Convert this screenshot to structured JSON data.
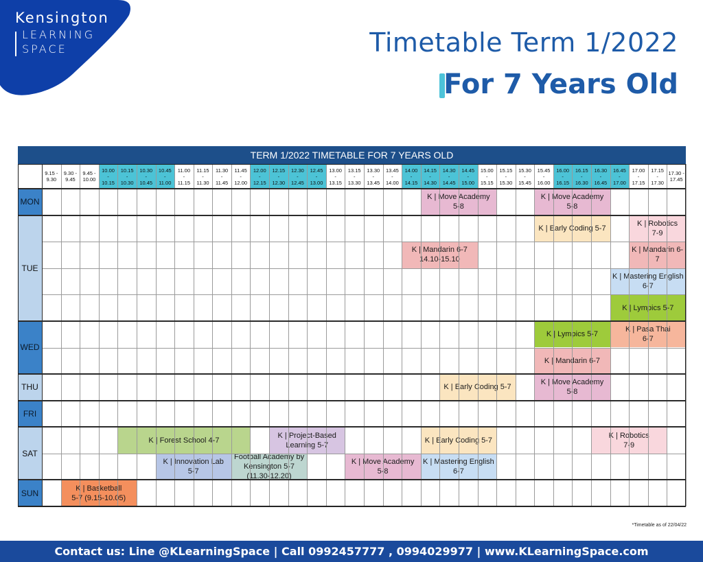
{
  "logo": {
    "line1": "Kensington",
    "line2": "LEARNING",
    "line3": "SPACE"
  },
  "title": {
    "line1": "Timetable Term 1/2022",
    "line2": "For 7 Years Old"
  },
  "table": {
    "header": "TERM 1/2022 TIMETABLE FOR 7 YEARS OLD",
    "times": [
      {
        "a": "9.15 -",
        "b": "9.30",
        "c": "",
        "teal": false
      },
      {
        "a": "9.30 -",
        "b": "9.45",
        "c": "",
        "teal": false
      },
      {
        "a": "9.45 -",
        "b": "10.00",
        "c": "",
        "teal": false
      },
      {
        "a": "10.00",
        "b": "-",
        "c": "10.15",
        "teal": true
      },
      {
        "a": "10.15",
        "b": "-",
        "c": "10.30",
        "teal": true
      },
      {
        "a": "10.30",
        "b": "-",
        "c": "10.45",
        "teal": true
      },
      {
        "a": "10.45",
        "b": "-",
        "c": "11.00",
        "teal": true
      },
      {
        "a": "11.00",
        "b": "-",
        "c": "11.15",
        "teal": false
      },
      {
        "a": "11.15",
        "b": "-",
        "c": "11.30",
        "teal": false
      },
      {
        "a": "11.30",
        "b": "-",
        "c": "11.45",
        "teal": false
      },
      {
        "a": "11.45",
        "b": "-",
        "c": "12.00",
        "teal": false
      },
      {
        "a": "12.00",
        "b": "-",
        "c": "12.15",
        "teal": true
      },
      {
        "a": "12.15",
        "b": "-",
        "c": "12.30",
        "teal": true
      },
      {
        "a": "12.30",
        "b": "-",
        "c": "12.45",
        "teal": true
      },
      {
        "a": "12.45",
        "b": "-",
        "c": "13.00",
        "teal": true
      },
      {
        "a": "13.00",
        "b": "-",
        "c": "13.15",
        "teal": false
      },
      {
        "a": "13.15",
        "b": "-",
        "c": "13.30",
        "teal": false
      },
      {
        "a": "13.30",
        "b": "-",
        "c": "13.45",
        "teal": false
      },
      {
        "a": "13.45",
        "b": "-",
        "c": "14.00",
        "teal": false
      },
      {
        "a": "14.00",
        "b": "-",
        "c": "14.15",
        "teal": true
      },
      {
        "a": "14.15",
        "b": "-",
        "c": "14.30",
        "teal": true
      },
      {
        "a": "14.30",
        "b": "-",
        "c": "14.45",
        "teal": true
      },
      {
        "a": "14.45",
        "b": "-",
        "c": "15.00",
        "teal": true
      },
      {
        "a": "15.00",
        "b": "-",
        "c": "15.15",
        "teal": false
      },
      {
        "a": "15.15",
        "b": "-",
        "c": "15.30",
        "teal": false
      },
      {
        "a": "15.30",
        "b": "-",
        "c": "15.45",
        "teal": false
      },
      {
        "a": "15.45",
        "b": "-",
        "c": "16.00",
        "teal": false
      },
      {
        "a": "16.00",
        "b": "-",
        "c": "16.15",
        "teal": true
      },
      {
        "a": "16.15",
        "b": "-",
        "c": "16.30",
        "teal": true
      },
      {
        "a": "16.30",
        "b": "-",
        "c": "16.45",
        "teal": true
      },
      {
        "a": "16.45",
        "b": "-",
        "c": "17.00",
        "teal": true
      },
      {
        "a": "17.00",
        "b": "-",
        "c": "17.15",
        "teal": false
      },
      {
        "a": "17.15",
        "b": "-",
        "c": "17.30",
        "teal": false
      },
      {
        "a": "17.30 -",
        "b": "17.45",
        "c": "",
        "teal": false
      }
    ],
    "days": [
      {
        "label": "MON",
        "rows": 1,
        "blue": true
      },
      {
        "label": "TUE",
        "rows": 4,
        "blue": false
      },
      {
        "label": "WED",
        "rows": 2,
        "blue": true
      },
      {
        "label": "THU",
        "rows": 1,
        "blue": false
      },
      {
        "label": "FRI",
        "rows": 1,
        "blue": true
      },
      {
        "label": "SAT",
        "rows": 2,
        "blue": false
      },
      {
        "label": "SUN",
        "rows": 1,
        "blue": true
      }
    ],
    "events": [
      {
        "text": "K | Move Academy\n5-8",
        "day": "MON",
        "row": 0,
        "start": 20,
        "span": 4,
        "color": "#e7b9d2"
      },
      {
        "text": "K | Move Academy\n5-8",
        "day": "MON",
        "row": 0,
        "start": 26,
        "span": 4,
        "color": "#e7b9d2"
      },
      {
        "text": "K | Early Coding 5-7",
        "day": "TUE",
        "row": 0,
        "start": 26,
        "span": 4,
        "color": "#fbe5c0"
      },
      {
        "text": "K | Robotics\n7-9",
        "day": "TUE",
        "row": 0,
        "start": 31,
        "span": 3,
        "color": "#f9d7dd"
      },
      {
        "text": "K | Mandarin 6-7\n14.10-15.10",
        "day": "TUE",
        "row": 1,
        "start": 19,
        "span": 4,
        "color": "#f1b8b8"
      },
      {
        "text": "K | Mandarin 6-7",
        "day": "TUE",
        "row": 1,
        "start": 31,
        "span": 3,
        "color": "#f1b8b8"
      },
      {
        "text": "K | Mastering English\n6-7",
        "day": "TUE",
        "row": 2,
        "start": 30,
        "span": 4,
        "color": "#c7ddf3"
      },
      {
        "text": "K | Lympics 5-7",
        "day": "TUE",
        "row": 3,
        "start": 30,
        "span": 4,
        "color": "#9ecb3b"
      },
      {
        "text": "K | Lympics 5-7",
        "day": "WED",
        "row": 0,
        "start": 26,
        "span": 4,
        "color": "#9ecb3b"
      },
      {
        "text": "K | Pasa Thai\n6-7",
        "day": "WED",
        "row": 0,
        "start": 30,
        "span": 4,
        "color": "#f6b69c"
      },
      {
        "text": "K | Mandarin 6-7",
        "day": "WED",
        "row": 1,
        "start": 26,
        "span": 4,
        "color": "#f1b8b8"
      },
      {
        "text": "K | Early Coding 5-7",
        "day": "THU",
        "row": 0,
        "start": 21,
        "span": 4,
        "color": "#fbe5c0"
      },
      {
        "text": "K | Move Academy\n5-8",
        "day": "THU",
        "row": 0,
        "start": 26,
        "span": 4,
        "color": "#e7b9d2"
      },
      {
        "text": "K | Forest School 4-7",
        "day": "SAT",
        "row": 0,
        "start": 4,
        "span": 7,
        "color": "#b9d58d"
      },
      {
        "text": "K | Project-Based\nLearning 5-7",
        "day": "SAT",
        "row": 0,
        "start": 12,
        "span": 4,
        "color": "#d7c5e2"
      },
      {
        "text": "K | Early Coding 5-7",
        "day": "SAT",
        "row": 0,
        "start": 20,
        "span": 4,
        "color": "#fbe5c0"
      },
      {
        "text": "K | Robotics\n7-9",
        "day": "SAT",
        "row": 0,
        "start": 29,
        "span": 4,
        "color": "#f9d7dd"
      },
      {
        "text": "K | Innovation Lab\n5-7",
        "day": "SAT",
        "row": 1,
        "start": 6,
        "span": 4,
        "color": "#b7c6e6"
      },
      {
        "text": "Football Academy by\nKensington 5-7\n(11.30-12.20)",
        "day": "SAT",
        "row": 1,
        "start": 10,
        "span": 4,
        "color": "#bdd6d0"
      },
      {
        "text": "K | Move Academy\n5-8",
        "day": "SAT",
        "row": 1,
        "start": 16,
        "span": 4,
        "color": "#e7b9d2"
      },
      {
        "text": "K | Mastering English\n6-7",
        "day": "SAT",
        "row": 1,
        "start": 20,
        "span": 4,
        "color": "#c7ddf3"
      },
      {
        "text": "K | Basketball\n5-7 (9.15-10.05)",
        "day": "SUN",
        "row": 0,
        "start": 1,
        "span": 4,
        "color": "#f48f5d"
      }
    ]
  },
  "footnote": "*Timetable as of 22/04/22",
  "footer": "Contact us: Line @KLearningSpace | Call 0992457777 , 0994029977 | www.KLearningSpace.com",
  "colors": {
    "brand_blue": "#1e5ba8",
    "teal": "#4cc3d6",
    "footer_blue": "#1a4a9c"
  }
}
